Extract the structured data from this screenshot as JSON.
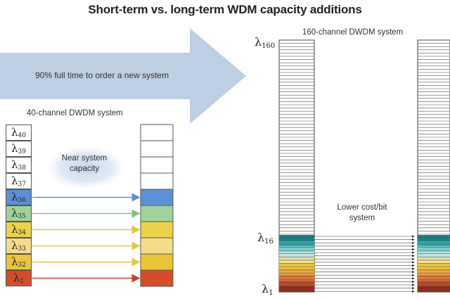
{
  "title": "Short-term vs. long-term WDM capacity additions",
  "arrow_label": "90% full time to order a new system",
  "left_system": {
    "label": "40-channel DWDM system",
    "capacity_note": [
      "Near system",
      "capacity"
    ],
    "channels": [
      {
        "lambda": "40",
        "color": "#ffffff",
        "arrow": false
      },
      {
        "lambda": "39",
        "color": "#ffffff",
        "arrow": false
      },
      {
        "lambda": "38",
        "color": "#ffffff",
        "arrow": false
      },
      {
        "lambda": "37",
        "color": "#ffffff",
        "arrow": false
      },
      {
        "lambda": "36",
        "color": "#5b8fd6",
        "arrow": true
      },
      {
        "lambda": "35",
        "color": "#9fd39a",
        "arrow": true
      },
      {
        "lambda": "34",
        "color": "#ecd14a",
        "arrow": true
      },
      {
        "lambda": "33",
        "color": "#f6dc8a",
        "arrow": true
      },
      {
        "lambda": "32",
        "color": "#e8c53a",
        "arrow": true
      },
      {
        "lambda": "1",
        "color": "#d44d2a",
        "arrow": true
      }
    ]
  },
  "right_system": {
    "label": "160-channel DWDM system",
    "top_lambda": "160",
    "mid_lambda": "16",
    "bottom_lambda": "1",
    "note": [
      "Lower cost/bit",
      "system"
    ],
    "colored_bands": [
      "#1f7f86",
      "#2fa8b0",
      "#7fcfd0",
      "#bde6e2",
      "#f2e09a",
      "#ecc53a",
      "#f0a640",
      "#e07a3a",
      "#c0482a",
      "#8a2c1c"
    ]
  },
  "colors": {
    "arrow": "#bdcfe2",
    "glow": "#c3d6ec",
    "blue_arrow": "#5b8fd6",
    "green_arrow": "#7cc77a",
    "yellow_arrow": "#e6c83a",
    "red_arrow": "#c8442a"
  }
}
